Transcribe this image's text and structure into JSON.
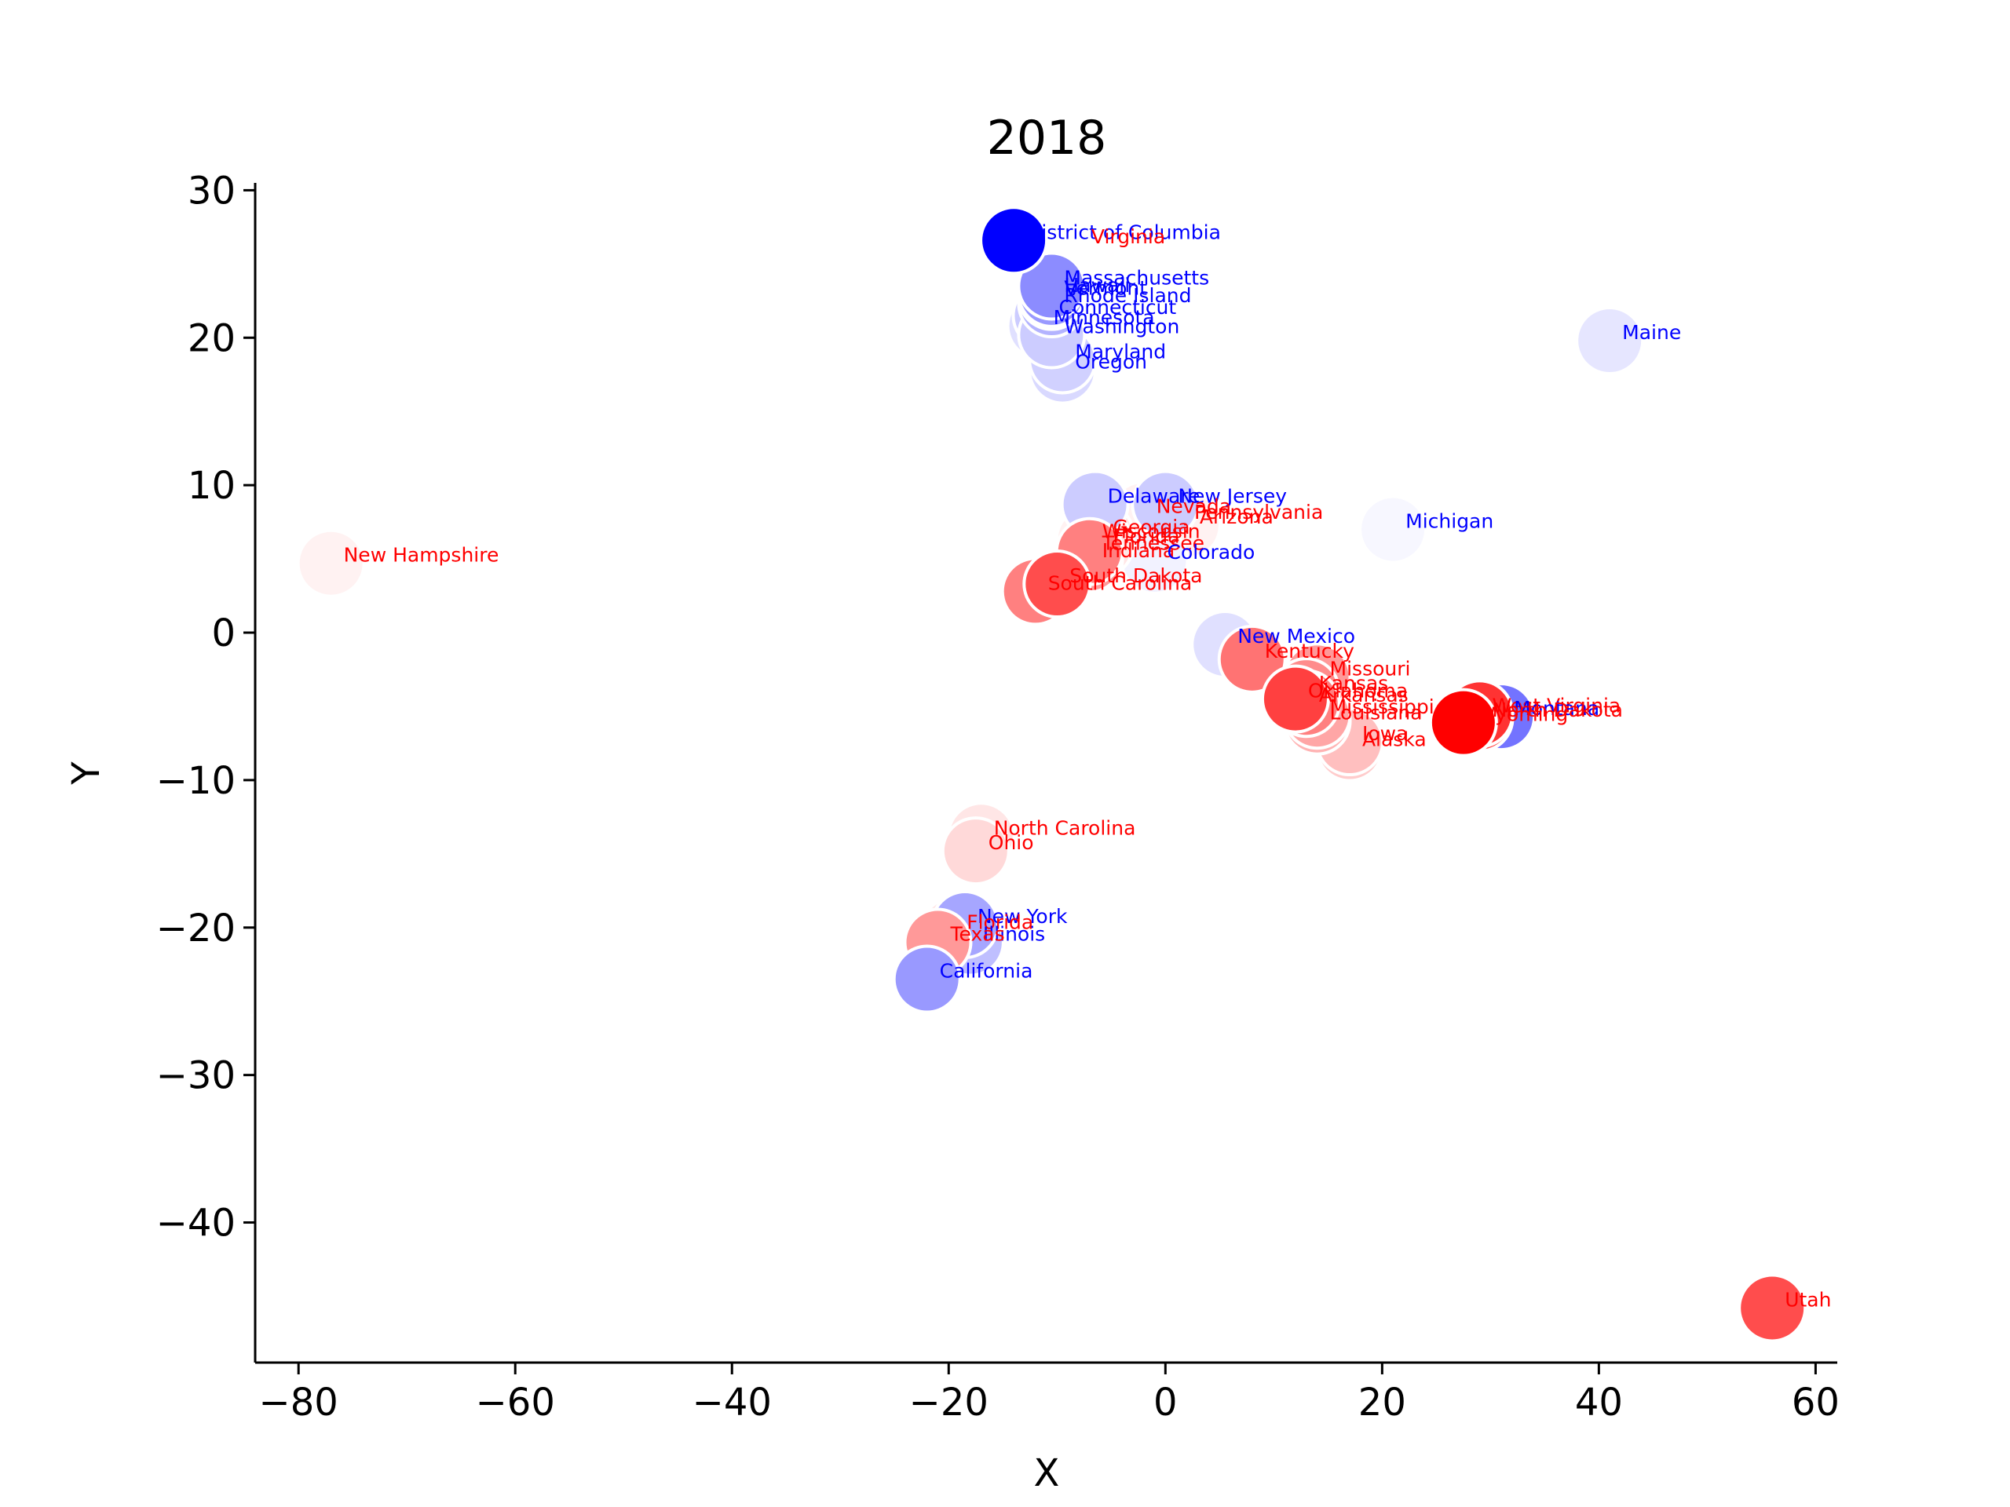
{
  "chart_data": {
    "type": "scatter",
    "title": "2018",
    "xlabel": "X",
    "ylabel": "Y",
    "xlim": [
      -84,
      62
    ],
    "ylim": [
      -49.5,
      30.5
    ],
    "xticks": [
      -80,
      -60,
      -40,
      -20,
      0,
      20,
      40,
      60
    ],
    "yticks": [
      30,
      20,
      10,
      0,
      -10,
      -20,
      -30,
      -40
    ],
    "xtick_labels": [
      "−80",
      "−60",
      "−40",
      "−20",
      "0",
      "20",
      "40",
      "60"
    ],
    "ytick_labels": [
      "30",
      "20",
      "10",
      "0",
      "−10",
      "−20",
      "−30",
      "−40"
    ],
    "grid": false,
    "legend": "none",
    "colors": {
      "democratic": "#0000ff",
      "republican": "#ff0000",
      "marker_edge": "#ffffff"
    },
    "points": [
      {
        "label": "District of Columbia",
        "x": -14,
        "y": 26.6,
        "party": "D",
        "shade": 1.0
      },
      {
        "label": "Virginia",
        "x": -8,
        "y": 26.3,
        "party": "R",
        "shade": 0.0
      },
      {
        "label": "Massachusetts",
        "x": -10.5,
        "y": 23.5,
        "party": "D",
        "shade": 0.45
      },
      {
        "label": "Vermont",
        "x": -10.5,
        "y": 22.8,
        "party": "D",
        "shade": 0.35
      },
      {
        "label": "Hawaii",
        "x": -10.5,
        "y": 23.0,
        "party": "D",
        "shade": 0.4
      },
      {
        "label": "Rhode Island",
        "x": -10.5,
        "y": 22.3,
        "party": "D",
        "shade": 0.3
      },
      {
        "label": "Connecticut",
        "x": -11,
        "y": 21.5,
        "party": "D",
        "shade": 0.2
      },
      {
        "label": "Minnesota",
        "x": -11.5,
        "y": 20.8,
        "party": "D",
        "shade": 0.12
      },
      {
        "label": "Washington",
        "x": -10.5,
        "y": 20.2,
        "party": "D",
        "shade": 0.2
      },
      {
        "label": "Maryland",
        "x": -9.5,
        "y": 18.5,
        "party": "D",
        "shade": 0.18
      },
      {
        "label": "Oregon",
        "x": -9.5,
        "y": 17.8,
        "party": "D",
        "shade": 0.15
      },
      {
        "label": "Maine",
        "x": 41,
        "y": 19.8,
        "party": "D",
        "shade": 0.1
      },
      {
        "label": "Delaware",
        "x": -6.5,
        "y": 8.7,
        "party": "D",
        "shade": 0.2
      },
      {
        "label": "New Jersey",
        "x": 0,
        "y": 8.7,
        "party": "D",
        "shade": 0.2
      },
      {
        "label": "Nevada",
        "x": -2,
        "y": 8.0,
        "party": "R",
        "shade": 0.05
      },
      {
        "label": "Pennsylvania",
        "x": 1.5,
        "y": 7.6,
        "party": "R",
        "shade": 0.05
      },
      {
        "label": "Arizona",
        "x": 2,
        "y": 7.3,
        "party": "R",
        "shade": 0.05
      },
      {
        "label": "Michigan",
        "x": 21,
        "y": 7.0,
        "party": "D",
        "shade": 0.03
      },
      {
        "label": "New Hampshire",
        "x": -77,
        "y": 4.7,
        "party": "R",
        "shade": 0.05
      },
      {
        "label": "Wisconsin",
        "x": -7,
        "y": 6.3,
        "party": "R",
        "shade": 0.05
      },
      {
        "label": "Georgia",
        "x": -6,
        "y": 6.6,
        "party": "R",
        "shade": 0.1
      },
      {
        "label": "Florida",
        "x": -6,
        "y": 6.0,
        "party": "R",
        "shade": 0.1
      },
      {
        "label": "Tennessee",
        "x": -7,
        "y": 5.5,
        "party": "R",
        "shade": 0.5
      },
      {
        "label": "Indiana",
        "x": -7,
        "y": 5.0,
        "party": "R",
        "shade": 0.4
      },
      {
        "label": "Colorado",
        "x": -1,
        "y": 4.9,
        "party": "D",
        "shade": 0.05
      },
      {
        "label": "South Dakota",
        "x": -10,
        "y": 3.3,
        "party": "R",
        "shade": 0.7
      },
      {
        "label": "South Carolina",
        "x": -12,
        "y": 2.8,
        "party": "R",
        "shade": 0.5
      },
      {
        "label": "New Mexico",
        "x": 5.5,
        "y": -0.8,
        "party": "D",
        "shade": 0.12
      },
      {
        "label": "Kentucky",
        "x": 8,
        "y": -1.8,
        "party": "R",
        "shade": 0.55
      },
      {
        "label": "Missouri",
        "x": 14,
        "y": -3.0,
        "party": "R",
        "shade": 0.4
      },
      {
        "label": "Kansas",
        "x": 13,
        "y": -4.0,
        "party": "R",
        "shade": 0.45
      },
      {
        "label": "Oklahoma",
        "x": 12,
        "y": -4.5,
        "party": "R",
        "shade": 0.75
      },
      {
        "label": "Arkansas",
        "x": 13,
        "y": -4.8,
        "party": "R",
        "shade": 0.5
      },
      {
        "label": "Mississippi",
        "x": 14,
        "y": -5.6,
        "party": "R",
        "shade": 0.35
      },
      {
        "label": "Louisiana",
        "x": 14,
        "y": -6.0,
        "party": "R",
        "shade": 0.3
      },
      {
        "label": "Iowa",
        "x": 17,
        "y": -7.4,
        "party": "R",
        "shade": 0.25
      },
      {
        "label": "Alaska",
        "x": 17,
        "y": -7.8,
        "party": "R",
        "shade": 0.2
      },
      {
        "label": "West Virginia",
        "x": 29,
        "y": -5.5,
        "party": "R",
        "shade": 0.8
      },
      {
        "label": "Montana",
        "x": 31,
        "y": -5.7,
        "party": "D",
        "shade": 0.55
      },
      {
        "label": "North Dakota",
        "x": 29,
        "y": -5.8,
        "party": "R",
        "shade": 0.7
      },
      {
        "label": "Wyoming",
        "x": 27.5,
        "y": -6.1,
        "party": "R",
        "shade": 1.0
      },
      {
        "label": "Utah",
        "x": 56,
        "y": -45.8,
        "party": "R",
        "shade": 0.7
      },
      {
        "label": "North Carolina",
        "x": -17,
        "y": -13.8,
        "party": "R",
        "shade": 0.1
      },
      {
        "label": "Ohio",
        "x": -17.5,
        "y": -14.8,
        "party": "R",
        "shade": 0.15
      },
      {
        "label": "New York",
        "x": -18.5,
        "y": -19.8,
        "party": "D",
        "shade": 0.35
      },
      {
        "label": "Florida",
        "x": -19.5,
        "y": -20.2,
        "party": "R",
        "shade": 0.1
      },
      {
        "label": "Illinois",
        "x": -18,
        "y": -21.0,
        "party": "D",
        "shade": 0.25
      },
      {
        "label": "Texas",
        "x": -21,
        "y": -21.0,
        "party": "R",
        "shade": 0.4
      },
      {
        "label": "California",
        "x": -22,
        "y": -23.5,
        "party": "D",
        "shade": 0.4
      }
    ]
  }
}
